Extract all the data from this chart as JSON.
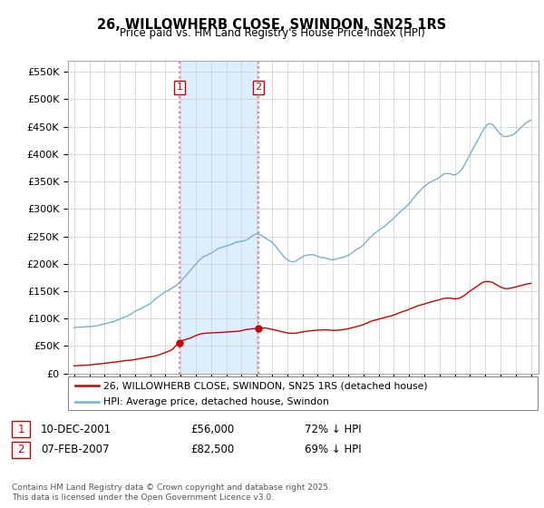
{
  "title": "26, WILLOWHERB CLOSE, SWINDON, SN25 1RS",
  "subtitle": "Price paid vs. HM Land Registry's House Price Index (HPI)",
  "legend_line1": "26, WILLOWHERB CLOSE, SWINDON, SN25 1RS (detached house)",
  "legend_line2": "HPI: Average price, detached house, Swindon",
  "transaction1_date": "10-DEC-2001",
  "transaction1_price": "£56,000",
  "transaction1_hpi": "72% ↓ HPI",
  "transaction2_date": "07-FEB-2007",
  "transaction2_price": "£82,500",
  "transaction2_hpi": "69% ↓ HPI",
  "footer": "Contains HM Land Registry data © Crown copyright and database right 2025.\nThis data is licensed under the Open Government Licence v3.0.",
  "red_color": "#cc0000",
  "blue_color": "#7bafd4",
  "shade_color": "#ddeeff",
  "vline_color": "#e08080",
  "grid_color": "#cccccc",
  "ylim_min": 0,
  "ylim_max": 570000,
  "transaction1_year": 2001.92,
  "transaction2_year": 2007.1,
  "transaction1_value": 56000,
  "transaction2_value": 82500,
  "hpi_years": [
    1995,
    1995.5,
    1996,
    1996.5,
    1997,
    1997.5,
    1998,
    1998.5,
    1999,
    1999.5,
    2000,
    2000.5,
    2001,
    2001.5,
    2002,
    2002.5,
    2003,
    2003.5,
    2004,
    2004.5,
    2005,
    2005.5,
    2006,
    2006.5,
    2007,
    2007.5,
    2008,
    2008.5,
    2009,
    2009.5,
    2010,
    2010.5,
    2011,
    2011.5,
    2012,
    2012.5,
    2013,
    2013.5,
    2014,
    2014.5,
    2015,
    2015.5,
    2016,
    2016.5,
    2017,
    2017.5,
    2018,
    2018.5,
    2019,
    2019.5,
    2020,
    2020.5,
    2021,
    2021.5,
    2022,
    2022.5,
    2023,
    2023.5,
    2024,
    2024.5,
    2025
  ],
  "hpi_vals": [
    84000,
    86000,
    88000,
    90000,
    93000,
    97000,
    102000,
    108000,
    116000,
    122000,
    130000,
    140000,
    150000,
    158000,
    170000,
    185000,
    200000,
    213000,
    220000,
    228000,
    232000,
    237000,
    240000,
    247000,
    255000,
    248000,
    240000,
    225000,
    210000,
    207000,
    215000,
    218000,
    215000,
    212000,
    210000,
    213000,
    218000,
    228000,
    238000,
    252000,
    263000,
    273000,
    285000,
    298000,
    310000,
    325000,
    338000,
    348000,
    355000,
    362000,
    360000,
    370000,
    395000,
    420000,
    445000,
    448000,
    430000,
    425000,
    432000,
    445000,
    455000
  ],
  "red_years": [
    1995,
    1995.5,
    1996,
    1996.5,
    1997,
    1997.5,
    1998,
    1998.5,
    1999,
    1999.5,
    2000,
    2000.5,
    2001,
    2001.5,
    2001.92,
    2002.5,
    2003,
    2003.5,
    2004,
    2004.5,
    2005,
    2005.5,
    2006,
    2006.5,
    2007.1,
    2007.5,
    2008,
    2008.5,
    2009,
    2009.5,
    2010,
    2010.5,
    2011,
    2011.5,
    2012,
    2012.5,
    2013,
    2013.5,
    2014,
    2014.5,
    2015,
    2015.5,
    2016,
    2016.5,
    2017,
    2017.5,
    2018,
    2018.5,
    2019,
    2019.5,
    2020,
    2020.5,
    2021,
    2021.5,
    2022,
    2022.5,
    2023,
    2023.5,
    2024,
    2024.5,
    2025
  ],
  "red_vals": [
    12000,
    13000,
    14000,
    15500,
    17000,
    18500,
    20000,
    22000,
    24000,
    26500,
    29000,
    32000,
    37000,
    44000,
    56000,
    62000,
    68000,
    72000,
    73000,
    74000,
    75000,
    76000,
    78000,
    81000,
    82500,
    83000,
    81000,
    78000,
    75000,
    74000,
    76000,
    78000,
    79000,
    79500,
    79000,
    80000,
    82000,
    86000,
    90000,
    96000,
    100000,
    104000,
    108000,
    113000,
    118000,
    124000,
    128000,
    132000,
    135000,
    138000,
    136000,
    140000,
    150000,
    160000,
    168000,
    166000,
    158000,
    155000,
    158000,
    162000,
    165000
  ]
}
